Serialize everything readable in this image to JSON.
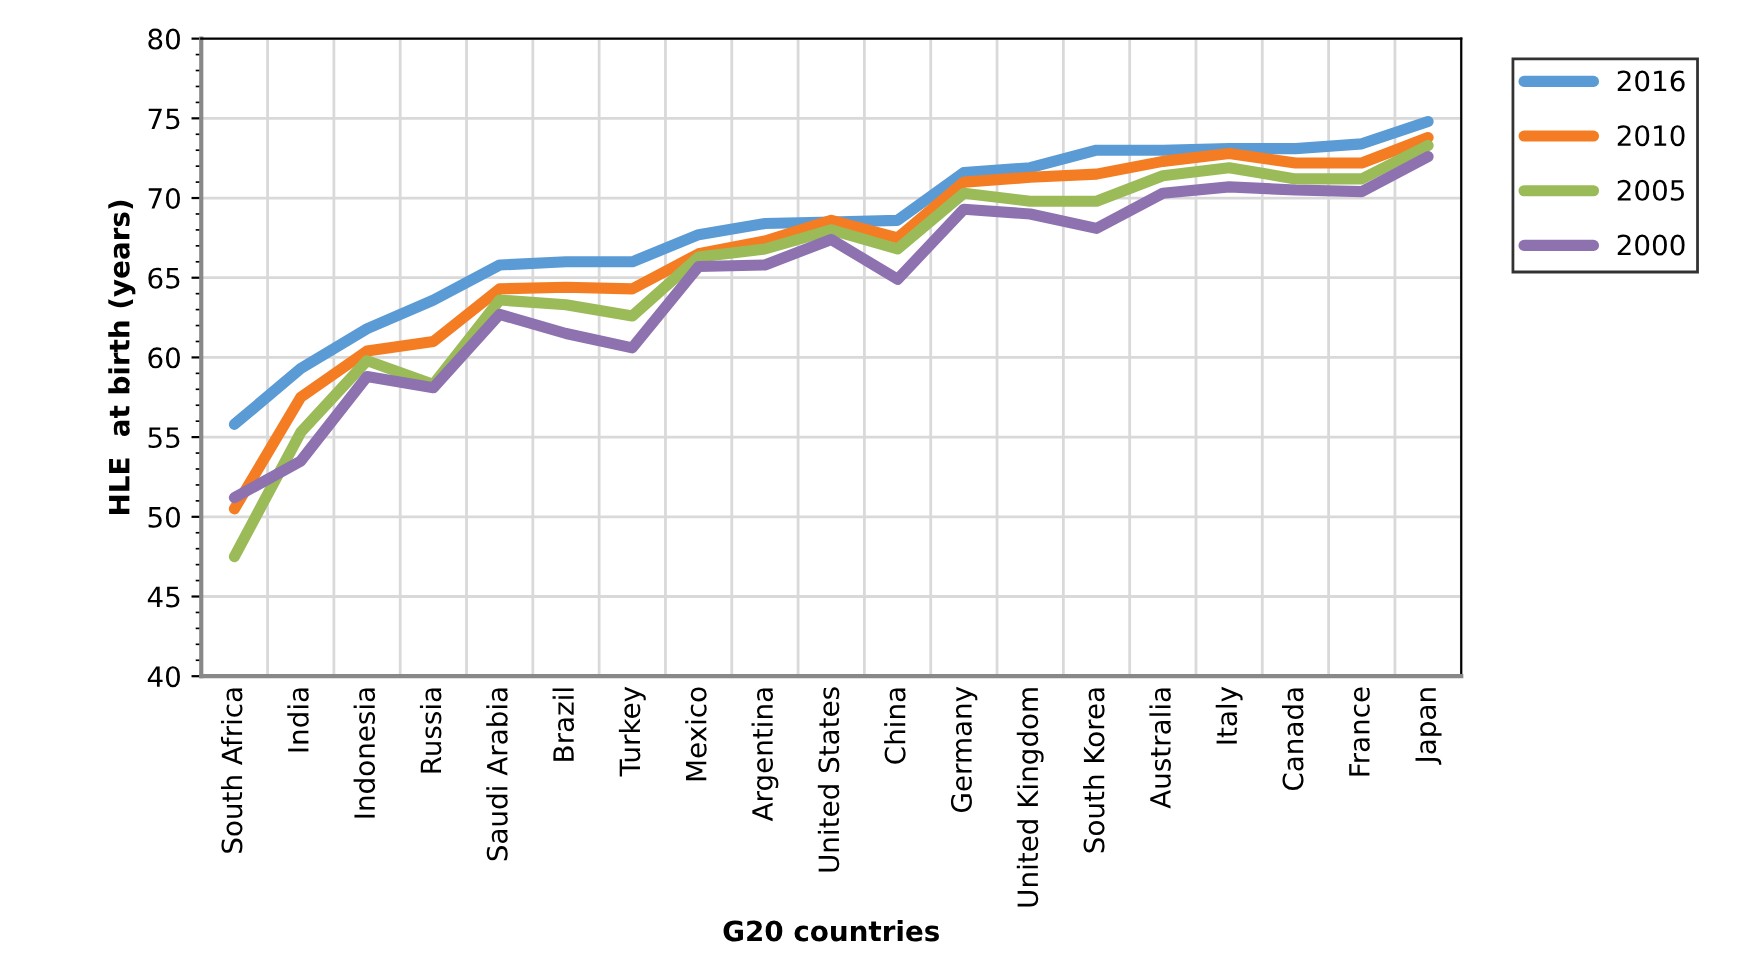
{
  "chart_data": {
    "type": "line",
    "xlabel": "G20 countries",
    "ylabel": "HLE  at birth (years)",
    "categories": [
      "South Africa",
      "India",
      "Indonesia",
      "Russia",
      "Saudi Arabia",
      "Brazil",
      "Turkey",
      "Mexico",
      "Argentina",
      "United States",
      "China",
      "Germany",
      "United Kingdom",
      "South Korea",
      "Australia",
      "Italy",
      "Canada",
      "France",
      "Japan"
    ],
    "series": [
      {
        "name": "2016",
        "color": "#5b9bd5",
        "values": [
          55.8,
          59.3,
          61.8,
          63.6,
          65.8,
          66.0,
          66.0,
          67.7,
          68.4,
          68.5,
          68.6,
          71.6,
          71.9,
          73.0,
          73.0,
          73.1,
          73.1,
          73.4,
          74.8
        ]
      },
      {
        "name": "2010",
        "color": "#f47d23",
        "values": [
          50.5,
          57.5,
          60.4,
          61.0,
          64.3,
          64.4,
          64.3,
          66.5,
          67.3,
          68.6,
          67.5,
          71.0,
          71.3,
          71.5,
          72.3,
          72.8,
          72.2,
          72.2,
          73.8
        ]
      },
      {
        "name": "2005",
        "color": "#9bbb59",
        "values": [
          47.5,
          55.3,
          59.8,
          58.3,
          63.6,
          63.3,
          62.6,
          66.3,
          66.8,
          68.0,
          66.8,
          70.3,
          69.8,
          69.8,
          71.4,
          71.9,
          71.2,
          71.2,
          73.3
        ]
      },
      {
        "name": "2000",
        "color": "#8e72b0",
        "values": [
          51.2,
          53.5,
          58.8,
          58.1,
          62.7,
          61.5,
          60.6,
          65.7,
          65.8,
          67.4,
          64.9,
          69.3,
          69.0,
          68.1,
          70.3,
          70.7,
          70.5,
          70.4,
          72.6
        ]
      }
    ],
    "ylim": [
      40,
      80
    ],
    "yticks": [
      40,
      45,
      50,
      55,
      60,
      65,
      70,
      75,
      80
    ],
    "grid": true,
    "legend": "top right",
    "marker": "none",
    "line_style": "solid"
  }
}
